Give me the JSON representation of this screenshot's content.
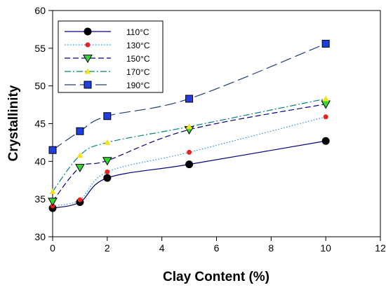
{
  "chart_data": {
    "type": "line",
    "xlabel": "Clay Content (%)",
    "ylabel": "Crystallinity",
    "xlim": [
      0,
      12
    ],
    "ylim": [
      30,
      60
    ],
    "xticks": [
      0,
      2,
      4,
      6,
      8,
      10,
      12
    ],
    "yticks": [
      30,
      35,
      40,
      45,
      50,
      55,
      60
    ],
    "legend_position": "top-left",
    "grid": false,
    "x": [
      0,
      1,
      2,
      5,
      10
    ],
    "series": [
      {
        "name": "110°C",
        "values": [
          33.8,
          34.6,
          37.8,
          39.6,
          42.7
        ],
        "color": "#000080",
        "dash": "solid",
        "marker": "circle",
        "marker_color": "#000000"
      },
      {
        "name": "130°C",
        "values": [
          34.1,
          34.9,
          38.6,
          41.2,
          45.9
        ],
        "color": "#1e90ff",
        "dash": "dotted",
        "marker": "small-circle",
        "marker_color": "#e8231e"
      },
      {
        "name": "150°C",
        "values": [
          34.7,
          39.2,
          40.1,
          44.2,
          47.6
        ],
        "color": "#000080",
        "dash": "dashed",
        "marker": "triangle-down",
        "marker_color": "#33d633"
      },
      {
        "name": "170°C",
        "values": [
          36.0,
          40.8,
          42.5,
          44.6,
          48.3
        ],
        "color": "#008080",
        "dash": "dash-dot",
        "marker": "small-triangle-up",
        "marker_color": "#f2e31a"
      },
      {
        "name": "190°C",
        "values": [
          41.5,
          44.0,
          46.0,
          48.3,
          55.6
        ],
        "color": "#1e3c78",
        "dash": "long-dash",
        "marker": "square",
        "marker_color": "#1f3fe0"
      }
    ]
  }
}
